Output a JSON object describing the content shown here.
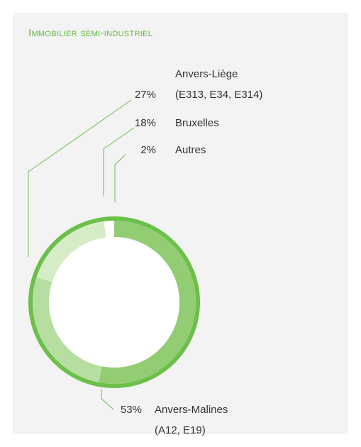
{
  "chart_data": {
    "type": "donut",
    "title": "Immobilier semi-industriel",
    "categories": [
      "Anvers-Malines\n(A12, E19)",
      "Anvers-Liège\n(E313, E34, E314)",
      "Bruxelles",
      "Autres"
    ],
    "values": [
      53,
      27,
      18,
      2
    ],
    "value_labels": [
      "53%",
      "27%",
      "18%",
      "2%"
    ],
    "colors": [
      "#92cd74",
      "#b7dea1",
      "#d5ecc7",
      "#ffffff"
    ],
    "ring_color": "#6cc04a"
  }
}
